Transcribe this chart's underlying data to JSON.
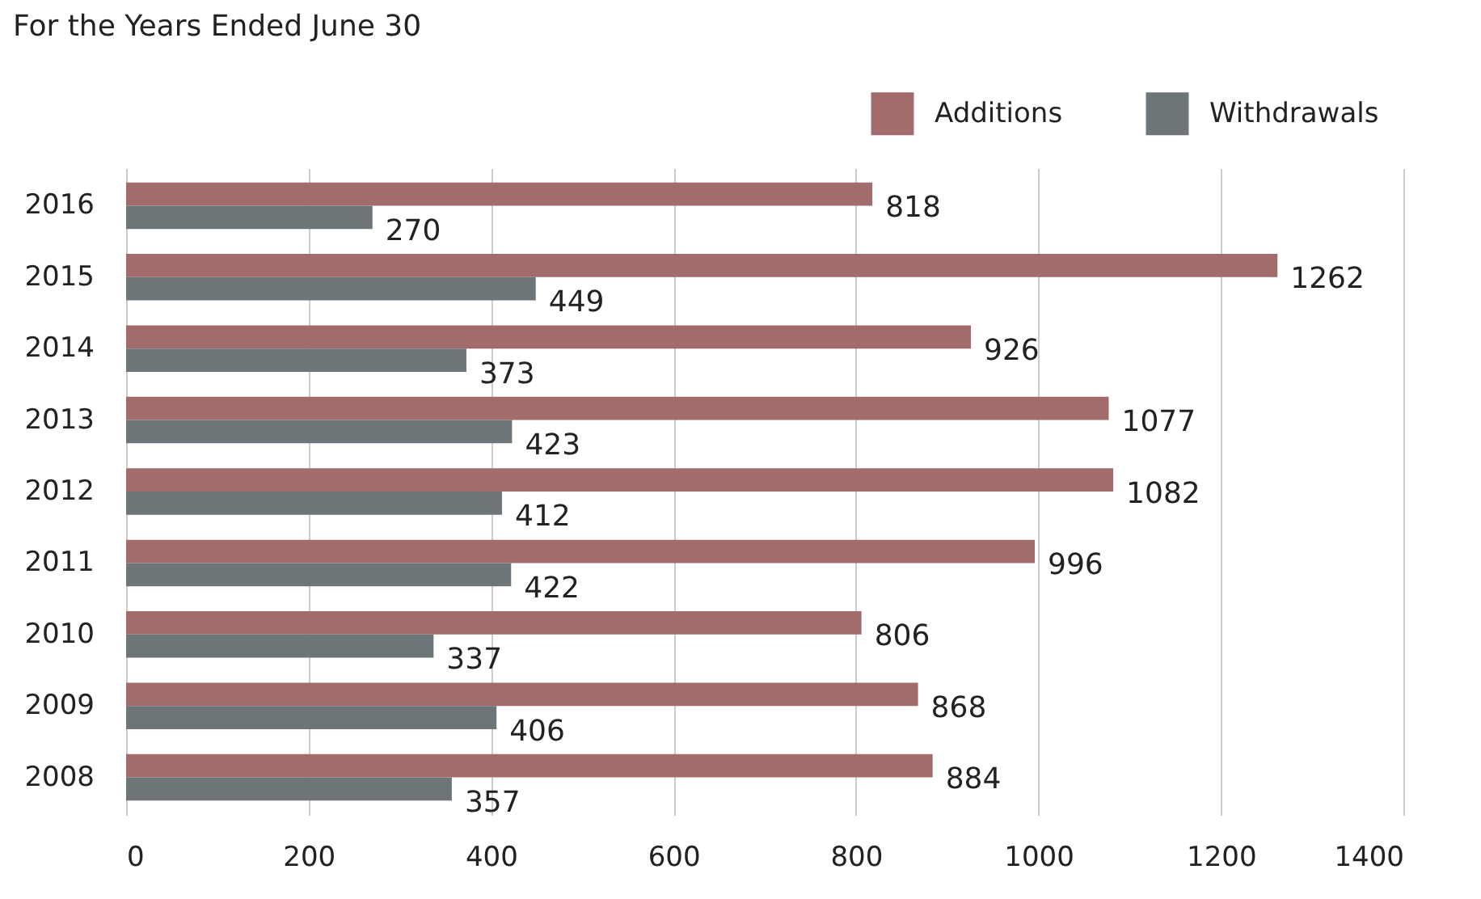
{
  "chart_data": {
    "type": "bar",
    "orientation": "horizontal",
    "title": "For the Years Ended June 30",
    "categories": [
      "2016",
      "2015",
      "2014",
      "2013",
      "2012",
      "2011",
      "2010",
      "2009",
      "2008"
    ],
    "series": [
      {
        "name": "Additions",
        "color": "#a36c6c",
        "values": [
          818,
          1262,
          926,
          1077,
          1082,
          996,
          806,
          868,
          884
        ]
      },
      {
        "name": "Withdrawals",
        "color": "#6e7579",
        "values": [
          270,
          449,
          373,
          423,
          412,
          422,
          337,
          406,
          357
        ]
      }
    ],
    "xlim": [
      0,
      1400
    ],
    "xticks": [
      0,
      200,
      400,
      600,
      800,
      1000,
      1200,
      1400
    ],
    "grid": "x",
    "legend": "top right",
    "data_labels": true
  }
}
